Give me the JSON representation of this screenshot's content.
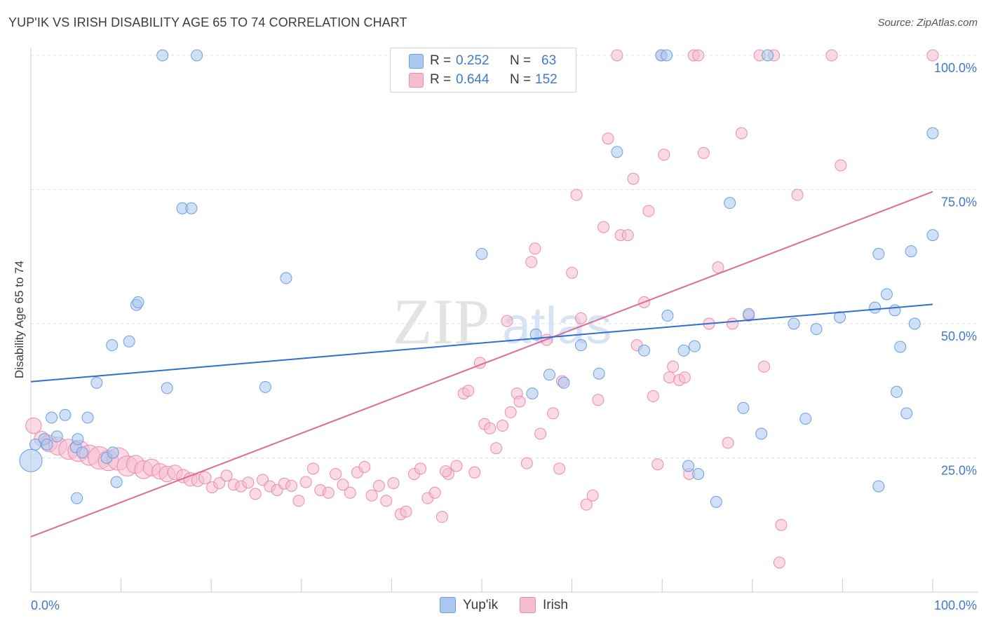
{
  "title": "YUP'IK VS IRISH DISABILITY AGE 65 TO 74 CORRELATION CHART",
  "source": "Source: ZipAtlas.com",
  "watermark": {
    "zip": "ZIP",
    "atlas": "atlas"
  },
  "colors": {
    "blue_fill": "#aac8f0",
    "blue_stroke": "#6a9ee0",
    "blue_line": "#2f6fd0",
    "pink_fill": "#f6bcd0",
    "pink_stroke": "#ec8bab",
    "pink_line": "#e06a96",
    "tick_blue": "#3f79c8",
    "grid": "#dedede"
  },
  "legend": {
    "r_label": "R =",
    "n_label": "N =",
    "rows": [
      {
        "series": "Yup'ik",
        "r": "0.252",
        "n": "63"
      },
      {
        "series": "Irish",
        "r": "0.644",
        "n": "152"
      }
    ]
  },
  "chart_data": {
    "type": "scatter",
    "title": "YUP'IK VS IRISH DISABILITY AGE 65 TO 74 CORRELATION CHART",
    "xlabel": "",
    "ylabel": "Disability Age 65 to 74",
    "xlim": [
      0,
      100
    ],
    "ylim": [
      0,
      100
    ],
    "x_tick_labels": [
      "0.0%",
      "100.0%"
    ],
    "y_ticks": [
      25,
      50,
      75,
      100
    ],
    "y_tick_labels": [
      "25.0%",
      "50.0%",
      "75.0%",
      "100.0%"
    ],
    "grid": true,
    "legend_position": "top-center",
    "series": [
      {
        "name": "Yup'ik",
        "r": 0.252,
        "n": 63,
        "trend": {
          "x": [
            0,
            100
          ],
          "y": [
            39.2,
            53.6
          ]
        },
        "points": [
          {
            "x": 0.0,
            "y": 24.5,
            "s": 2
          },
          {
            "x": 0.5,
            "y": 27.5,
            "s": 1
          },
          {
            "x": 1.5,
            "y": 28.5,
            "s": 1
          },
          {
            "x": 1.8,
            "y": 27.5,
            "s": 1
          },
          {
            "x": 2.3,
            "y": 32.5,
            "s": 1
          },
          {
            "x": 2.9,
            "y": 29.0,
            "s": 1
          },
          {
            "x": 3.8,
            "y": 33.0,
            "s": 1
          },
          {
            "x": 5.0,
            "y": 27.0,
            "s": 1
          },
          {
            "x": 5.1,
            "y": 17.5,
            "s": 1
          },
          {
            "x": 5.2,
            "y": 28.5,
            "s": 1
          },
          {
            "x": 5.7,
            "y": 26.0,
            "s": 1
          },
          {
            "x": 6.3,
            "y": 32.5,
            "s": 1
          },
          {
            "x": 7.3,
            "y": 39.0,
            "s": 1
          },
          {
            "x": 8.4,
            "y": 25.0,
            "s": 1
          },
          {
            "x": 9.1,
            "y": 26.0,
            "s": 1
          },
          {
            "x": 9.0,
            "y": 46.0,
            "s": 1
          },
          {
            "x": 9.5,
            "y": 20.5,
            "s": 1
          },
          {
            "x": 10.9,
            "y": 46.7,
            "s": 1
          },
          {
            "x": 11.7,
            "y": 53.5,
            "s": 1
          },
          {
            "x": 11.9,
            "y": 54.0,
            "s": 1
          },
          {
            "x": 14.6,
            "y": 100.0,
            "s": 1
          },
          {
            "x": 15.1,
            "y": 38.0,
            "s": 1
          },
          {
            "x": 16.8,
            "y": 71.5,
            "s": 1
          },
          {
            "x": 17.8,
            "y": 71.5,
            "s": 1
          },
          {
            "x": 18.4,
            "y": 100.0,
            "s": 1
          },
          {
            "x": 26.0,
            "y": 38.2,
            "s": 1
          },
          {
            "x": 28.3,
            "y": 58.5,
            "s": 1
          },
          {
            "x": 50.0,
            "y": 63.0,
            "s": 1
          },
          {
            "x": 55.6,
            "y": 37.0,
            "s": 1
          },
          {
            "x": 56.0,
            "y": 48.0,
            "s": 1
          },
          {
            "x": 57.5,
            "y": 40.5,
            "s": 1
          },
          {
            "x": 59.1,
            "y": 39.0,
            "s": 1
          },
          {
            "x": 61.0,
            "y": 46.0,
            "s": 1
          },
          {
            "x": 63.0,
            "y": 40.7,
            "s": 1
          },
          {
            "x": 65.0,
            "y": 82.0,
            "s": 1
          },
          {
            "x": 68.0,
            "y": 45.0,
            "s": 1
          },
          {
            "x": 69.9,
            "y": 100.0,
            "s": 1
          },
          {
            "x": 70.5,
            "y": 100.0,
            "s": 1
          },
          {
            "x": 70.6,
            "y": 51.5,
            "s": 1
          },
          {
            "x": 72.4,
            "y": 45.0,
            "s": 1
          },
          {
            "x": 72.9,
            "y": 23.5,
            "s": 1
          },
          {
            "x": 73.6,
            "y": 45.8,
            "s": 1
          },
          {
            "x": 74.0,
            "y": 22.0,
            "s": 1
          },
          {
            "x": 76.0,
            "y": 16.8,
            "s": 1
          },
          {
            "x": 77.5,
            "y": 72.5,
            "s": 1
          },
          {
            "x": 79.0,
            "y": 34.3,
            "s": 1
          },
          {
            "x": 79.6,
            "y": 51.8,
            "s": 1
          },
          {
            "x": 81.0,
            "y": 29.5,
            "s": 1
          },
          {
            "x": 81.7,
            "y": 100.0,
            "s": 1
          },
          {
            "x": 84.6,
            "y": 50.0,
            "s": 1
          },
          {
            "x": 85.9,
            "y": 32.3,
            "s": 1
          },
          {
            "x": 87.1,
            "y": 49.0,
            "s": 1
          },
          {
            "x": 89.7,
            "y": 51.2,
            "s": 1
          },
          {
            "x": 93.6,
            "y": 53.0,
            "s": 1
          },
          {
            "x": 94.0,
            "y": 63.0,
            "s": 1
          },
          {
            "x": 94.0,
            "y": 19.7,
            "s": 1
          },
          {
            "x": 94.9,
            "y": 55.5,
            "s": 1
          },
          {
            "x": 95.8,
            "y": 52.5,
            "s": 1
          },
          {
            "x": 96.0,
            "y": 37.3,
            "s": 1
          },
          {
            "x": 96.4,
            "y": 45.7,
            "s": 1
          },
          {
            "x": 97.1,
            "y": 33.3,
            "s": 1
          },
          {
            "x": 97.6,
            "y": 63.5,
            "s": 1
          },
          {
            "x": 98.0,
            "y": 50.0,
            "s": 1
          },
          {
            "x": 100.0,
            "y": 66.5,
            "s": 1
          },
          {
            "x": 100.0,
            "y": 85.5,
            "s": 1
          }
        ]
      },
      {
        "name": "Irish",
        "r": 0.644,
        "n": 152,
        "trend": {
          "x": [
            0,
            100
          ],
          "y": [
            10.3,
            74.6
          ]
        },
        "points": [
          {
            "x": 0.3,
            "y": 31.0,
            "s": 1.4
          },
          {
            "x": 1.2,
            "y": 28.6,
            "s": 1.3
          },
          {
            "x": 2.0,
            "y": 27.7,
            "s": 1.5
          },
          {
            "x": 3.0,
            "y": 27.2,
            "s": 1.6
          },
          {
            "x": 4.2,
            "y": 26.6,
            "s": 1.8
          },
          {
            "x": 5.3,
            "y": 26.3,
            "s": 1.9
          },
          {
            "x": 6.5,
            "y": 25.5,
            "s": 1.8
          },
          {
            "x": 7.6,
            "y": 25.0,
            "s": 2.0
          },
          {
            "x": 8.6,
            "y": 24.5,
            "s": 1.8
          },
          {
            "x": 9.7,
            "y": 24.8,
            "s": 2.0
          },
          {
            "x": 10.7,
            "y": 23.5,
            "s": 1.8
          },
          {
            "x": 11.6,
            "y": 23.8,
            "s": 1.6
          },
          {
            "x": 12.5,
            "y": 22.8,
            "s": 1.6
          },
          {
            "x": 13.4,
            "y": 23.2,
            "s": 1.5
          },
          {
            "x": 14.3,
            "y": 22.5,
            "s": 1.4
          },
          {
            "x": 15.1,
            "y": 22.0,
            "s": 1.4
          },
          {
            "x": 16.0,
            "y": 22.3,
            "s": 1.3
          },
          {
            "x": 16.9,
            "y": 21.6,
            "s": 1.2
          },
          {
            "x": 17.7,
            "y": 21.0,
            "s": 1.2
          },
          {
            "x": 18.5,
            "y": 20.8,
            "s": 1.1
          },
          {
            "x": 19.3,
            "y": 21.3,
            "s": 1.1
          },
          {
            "x": 20.1,
            "y": 19.5,
            "s": 1.0
          },
          {
            "x": 20.9,
            "y": 20.3,
            "s": 1.0
          },
          {
            "x": 21.7,
            "y": 21.7,
            "s": 1.0
          },
          {
            "x": 22.5,
            "y": 20.0,
            "s": 1.0
          },
          {
            "x": 23.3,
            "y": 19.7,
            "s": 1.0
          },
          {
            "x": 24.1,
            "y": 20.4,
            "s": 1.0
          },
          {
            "x": 24.9,
            "y": 18.3,
            "s": 1.0
          },
          {
            "x": 25.7,
            "y": 20.9,
            "s": 1.0
          },
          {
            "x": 26.5,
            "y": 19.7,
            "s": 1.0
          },
          {
            "x": 27.3,
            "y": 19.0,
            "s": 1.0
          },
          {
            "x": 28.1,
            "y": 20.2,
            "s": 1.0
          },
          {
            "x": 28.9,
            "y": 19.8,
            "s": 1.0
          },
          {
            "x": 29.7,
            "y": 17.0,
            "s": 1.0
          },
          {
            "x": 30.5,
            "y": 20.5,
            "s": 1.0
          },
          {
            "x": 31.3,
            "y": 23.0,
            "s": 1.0
          },
          {
            "x": 32.1,
            "y": 19.0,
            "s": 1.0
          },
          {
            "x": 33.0,
            "y": 18.5,
            "s": 1.0
          },
          {
            "x": 33.8,
            "y": 22.0,
            "s": 1.0
          },
          {
            "x": 34.6,
            "y": 20.0,
            "s": 1.0
          },
          {
            "x": 35.4,
            "y": 18.5,
            "s": 1.0
          },
          {
            "x": 36.2,
            "y": 22.3,
            "s": 1.0
          },
          {
            "x": 37.0,
            "y": 23.3,
            "s": 1.0
          },
          {
            "x": 37.8,
            "y": 18.0,
            "s": 1.0
          },
          {
            "x": 38.6,
            "y": 19.8,
            "s": 1.0
          },
          {
            "x": 39.4,
            "y": 17.0,
            "s": 1.0
          },
          {
            "x": 40.2,
            "y": 20.3,
            "s": 1.0
          },
          {
            "x": 41.0,
            "y": 14.5,
            "s": 1.0
          },
          {
            "x": 41.6,
            "y": 15.0,
            "s": 1.0
          },
          {
            "x": 42.5,
            "y": 22.0,
            "s": 1.0
          },
          {
            "x": 43.2,
            "y": 23.0,
            "s": 1.0
          },
          {
            "x": 44.0,
            "y": 17.5,
            "s": 1.0
          },
          {
            "x": 44.8,
            "y": 18.5,
            "s": 1.0
          },
          {
            "x": 45.6,
            "y": 14.0,
            "s": 1.0
          },
          {
            "x": 46.3,
            "y": 22.0,
            "s": 1.0
          },
          {
            "x": 46.0,
            "y": 22.5,
            "s": 1.0
          },
          {
            "x": 47.2,
            "y": 23.5,
            "s": 1.0
          },
          {
            "x": 48.0,
            "y": 37.0,
            "s": 1.0
          },
          {
            "x": 48.5,
            "y": 37.5,
            "s": 1.0
          },
          {
            "x": 49.2,
            "y": 22.3,
            "s": 1.0
          },
          {
            "x": 49.8,
            "y": 42.7,
            "s": 1.0
          },
          {
            "x": 50.3,
            "y": 31.3,
            "s": 1.0
          },
          {
            "x": 50.9,
            "y": 30.5,
            "s": 1.0
          },
          {
            "x": 51.6,
            "y": 26.8,
            "s": 1.0
          },
          {
            "x": 52.3,
            "y": 31.0,
            "s": 1.0
          },
          {
            "x": 52.8,
            "y": 50.5,
            "s": 1.0
          },
          {
            "x": 53.2,
            "y": 33.5,
            "s": 1.0
          },
          {
            "x": 53.9,
            "y": 37.0,
            "s": 1.0
          },
          {
            "x": 54.2,
            "y": 35.5,
            "s": 1.0
          },
          {
            "x": 55.0,
            "y": 24.0,
            "s": 1.0
          },
          {
            "x": 55.5,
            "y": 61.5,
            "s": 1.0
          },
          {
            "x": 55.9,
            "y": 64.0,
            "s": 1.0
          },
          {
            "x": 56.5,
            "y": 29.5,
            "s": 1.0
          },
          {
            "x": 57.2,
            "y": 47.0,
            "s": 1.0
          },
          {
            "x": 57.9,
            "y": 33.3,
            "s": 1.0
          },
          {
            "x": 58.6,
            "y": 23.0,
            "s": 1.0
          },
          {
            "x": 58.9,
            "y": 39.3,
            "s": 1.0
          },
          {
            "x": 60.0,
            "y": 59.5,
            "s": 1.0
          },
          {
            "x": 60.5,
            "y": 74.0,
            "s": 1.0
          },
          {
            "x": 61.0,
            "y": 51.0,
            "s": 1.0
          },
          {
            "x": 61.6,
            "y": 16.3,
            "s": 1.0
          },
          {
            "x": 62.3,
            "y": 18.0,
            "s": 1.0
          },
          {
            "x": 62.9,
            "y": 35.8,
            "s": 1.0
          },
          {
            "x": 63.5,
            "y": 68.0,
            "s": 1.0
          },
          {
            "x": 64.0,
            "y": 84.5,
            "s": 1.0
          },
          {
            "x": 65.0,
            "y": 100.0,
            "s": 1.0
          },
          {
            "x": 65.4,
            "y": 66.5,
            "s": 1.0
          },
          {
            "x": 66.2,
            "y": 66.5,
            "s": 1.0
          },
          {
            "x": 66.8,
            "y": 77.0,
            "s": 1.0
          },
          {
            "x": 67.2,
            "y": 46.0,
            "s": 1.0
          },
          {
            "x": 68.0,
            "y": 54.0,
            "s": 1.0
          },
          {
            "x": 68.5,
            "y": 71.0,
            "s": 1.0
          },
          {
            "x": 69.0,
            "y": 36.5,
            "s": 1.0
          },
          {
            "x": 69.5,
            "y": 23.8,
            "s": 1.0
          },
          {
            "x": 69.9,
            "y": 100.0,
            "s": 1.0
          },
          {
            "x": 70.2,
            "y": 81.5,
            "s": 1.0
          },
          {
            "x": 70.8,
            "y": 40.0,
            "s": 1.0
          },
          {
            "x": 71.2,
            "y": 42.0,
            "s": 1.0
          },
          {
            "x": 71.9,
            "y": 39.5,
            "s": 1.0
          },
          {
            "x": 72.5,
            "y": 40.0,
            "s": 1.0
          },
          {
            "x": 73.0,
            "y": 22.0,
            "s": 1.0
          },
          {
            "x": 73.5,
            "y": 100.0,
            "s": 1.0
          },
          {
            "x": 74.0,
            "y": 100.0,
            "s": 1.0
          },
          {
            "x": 74.6,
            "y": 81.8,
            "s": 1.0
          },
          {
            "x": 75.2,
            "y": 50.0,
            "s": 1.0
          },
          {
            "x": 76.2,
            "y": 60.5,
            "s": 1.0
          },
          {
            "x": 77.3,
            "y": 27.8,
            "s": 1.0
          },
          {
            "x": 77.8,
            "y": 50.0,
            "s": 1.0
          },
          {
            "x": 78.8,
            "y": 85.5,
            "s": 1.0
          },
          {
            "x": 79.6,
            "y": 51.5,
            "s": 1.0
          },
          {
            "x": 80.8,
            "y": 100.0,
            "s": 1.0
          },
          {
            "x": 81.3,
            "y": 42.0,
            "s": 1.0
          },
          {
            "x": 82.4,
            "y": 100.0,
            "s": 1.0
          },
          {
            "x": 83.2,
            "y": 12.5,
            "s": 1.0
          },
          {
            "x": 83.0,
            "y": 5.5,
            "s": 1.0
          },
          {
            "x": 85.0,
            "y": 74.0,
            "s": 1.0
          },
          {
            "x": 88.8,
            "y": 100.0,
            "s": 1.0
          },
          {
            "x": 89.8,
            "y": 79.5,
            "s": 1.0
          },
          {
            "x": 100.0,
            "y": 100.0,
            "s": 1.0
          }
        ]
      }
    ]
  }
}
